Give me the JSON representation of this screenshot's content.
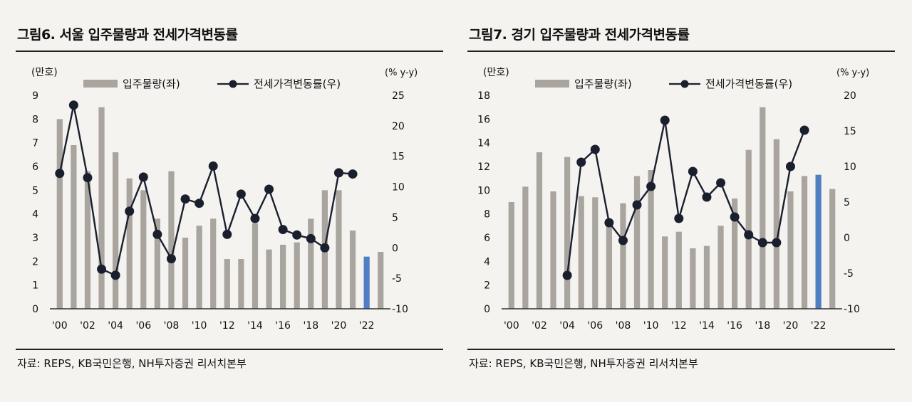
{
  "chart_data": [
    {
      "type": "bar",
      "title": "그림6. 서울 입주물량과 전세가격변동률",
      "source": "자료: REPS, KB국민은행, NH투자증권 리서치본부",
      "left_unit": "(만호)",
      "right_unit": "(% y-y)",
      "legend": [
        "입주물량(좌)",
        "전세가격변동률(우)"
      ],
      "categories": [
        "2000",
        "2001",
        "2002",
        "2003",
        "2004",
        "2005",
        "2006",
        "2007",
        "2008",
        "2009",
        "2010",
        "2011",
        "2012",
        "2013",
        "2014",
        "2015",
        "2016",
        "2017",
        "2018",
        "2019",
        "2020",
        "2021",
        "2022",
        "2023"
      ],
      "x_tick_labels": [
        "'00",
        "'02",
        "'04",
        "'06",
        "'08",
        "'10",
        "'12",
        "'14",
        "'16",
        "'18",
        "'20",
        "'22"
      ],
      "left_ylim": [
        0,
        9
      ],
      "left_ticks": [
        "0",
        "1",
        "2",
        "3",
        "4",
        "5",
        "6",
        "7",
        "8",
        "9"
      ],
      "right_ylim": [
        -10,
        25
      ],
      "right_ticks": [
        "-10",
        "-5",
        "0",
        "5",
        "10",
        "15",
        "20",
        "25"
      ],
      "series": [
        {
          "name": "입주물량(좌)",
          "type": "bar",
          "axis": "left",
          "values": [
            8.0,
            6.9,
            5.8,
            8.5,
            6.6,
            5.5,
            5.0,
            3.8,
            5.8,
            3.0,
            3.5,
            3.8,
            2.1,
            2.1,
            3.6,
            2.5,
            2.7,
            2.8,
            3.8,
            5.0,
            5.0,
            3.3,
            2.2,
            2.4
          ],
          "highlight_index": 22
        },
        {
          "name": "전세가격변동률(우)",
          "type": "line",
          "axis": "right",
          "values": [
            12.2,
            23.4,
            11.5,
            -3.5,
            -4.5,
            6.0,
            11.6,
            2.2,
            -1.8,
            8.0,
            7.3,
            13.4,
            2.2,
            8.8,
            4.8,
            9.6,
            3.0,
            2.1,
            1.5,
            0.0,
            12.3,
            12.1,
            null,
            null
          ]
        }
      ],
      "colors": {
        "bar": "#a9a59e",
        "bar_highlight": "#4f7ec2",
        "line": "#1a1f2e"
      }
    },
    {
      "type": "bar",
      "title": "그림7. 경기 입주물량과 전세가격변동률",
      "source": "자료: REPS, KB국민은행, NH투자증권 리서치본부",
      "left_unit": "(만호)",
      "right_unit": "(% y-y)",
      "legend": [
        "입주물량(좌)",
        "전세가격변동률(우)"
      ],
      "categories": [
        "2000",
        "2001",
        "2002",
        "2003",
        "2004",
        "2005",
        "2006",
        "2007",
        "2008",
        "2009",
        "2010",
        "2011",
        "2012",
        "2013",
        "2014",
        "2015",
        "2016",
        "2017",
        "2018",
        "2019",
        "2020",
        "2021",
        "2022",
        "2023"
      ],
      "x_tick_labels": [
        "'00",
        "'02",
        "'04",
        "'06",
        "'08",
        "'10",
        "'12",
        "'14",
        "'16",
        "'18",
        "'20",
        "'22"
      ],
      "left_ylim": [
        0,
        18
      ],
      "left_ticks": [
        "0",
        "2",
        "4",
        "6",
        "8",
        "10",
        "12",
        "14",
        "16",
        "18"
      ],
      "right_ylim": [
        -10,
        20
      ],
      "right_ticks": [
        "-10",
        "-5",
        "0",
        "5",
        "10",
        "15",
        "20"
      ],
      "series": [
        {
          "name": "입주물량(좌)",
          "type": "bar",
          "axis": "left",
          "values": [
            9.0,
            10.3,
            13.2,
            9.9,
            12.8,
            9.5,
            9.4,
            7.3,
            8.9,
            11.2,
            11.7,
            6.1,
            6.5,
            5.1,
            5.3,
            7.0,
            9.3,
            13.4,
            17.0,
            14.3,
            9.9,
            11.2,
            11.3,
            10.1
          ],
          "highlight_index": 22
        },
        {
          "name": "전세가격변동률(우)",
          "type": "line",
          "axis": "right",
          "values": [
            null,
            null,
            null,
            null,
            -5.3,
            10.6,
            12.4,
            2.1,
            -0.4,
            4.6,
            7.2,
            16.5,
            2.7,
            9.3,
            5.7,
            7.7,
            2.9,
            0.4,
            -0.7,
            -0.7,
            10.0,
            15.1,
            null,
            null
          ]
        }
      ],
      "colors": {
        "bar": "#a9a59e",
        "bar_highlight": "#4f7ec2",
        "line": "#1a1f2e"
      }
    }
  ]
}
